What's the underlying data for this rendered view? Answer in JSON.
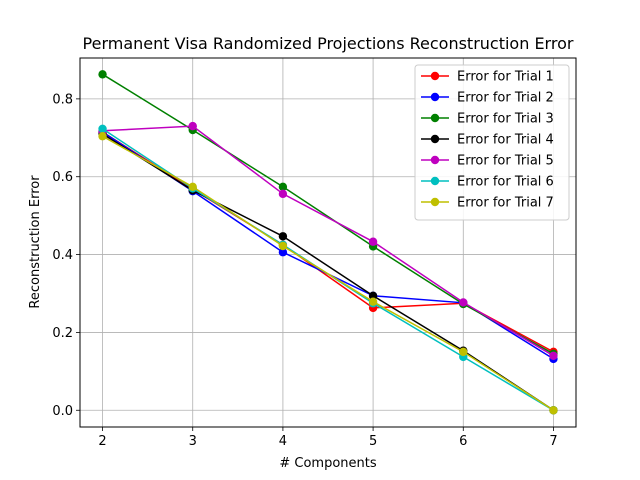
{
  "chart_data": {
    "type": "line",
    "title": "Permanent Visa Randomized Projections Reconstruction Error",
    "xlabel": "# Components",
    "ylabel": "Reconstruction Error",
    "x": [
      2,
      3,
      4,
      5,
      6,
      7
    ],
    "xlim": [
      1.75,
      7.25
    ],
    "ylim": [
      -0.043,
      0.905
    ],
    "xticks": [
      2,
      3,
      4,
      5,
      6,
      7
    ],
    "yticks": [
      0.0,
      0.2,
      0.4,
      0.6,
      0.8
    ],
    "ytick_labels": [
      "0.0",
      "0.2",
      "0.4",
      "0.6",
      "0.8"
    ],
    "grid": true,
    "legend_position": "top-right",
    "series": [
      {
        "name": "Error for Trial 1",
        "color": "#ff0000",
        "values": [
          0.715,
          0.568,
          0.425,
          0.263,
          0.275,
          0.15
        ]
      },
      {
        "name": "Error for Trial 2",
        "color": "#0000ff",
        "values": [
          0.715,
          0.563,
          0.406,
          0.294,
          0.276,
          0.132
        ]
      },
      {
        "name": "Error for Trial 3",
        "color": "#008000",
        "values": [
          0.863,
          0.72,
          0.574,
          0.421,
          0.273,
          0.145
        ]
      },
      {
        "name": "Error for Trial 4",
        "color": "#000000",
        "values": [
          0.71,
          0.565,
          0.447,
          0.294,
          0.153,
          0.0
        ]
      },
      {
        "name": "Error for Trial 5",
        "color": "#bf00bf",
        "values": [
          0.718,
          0.73,
          0.556,
          0.433,
          0.277,
          0.14
        ]
      },
      {
        "name": "Error for Trial 6",
        "color": "#00bfbf",
        "values": [
          0.723,
          0.57,
          0.425,
          0.275,
          0.137,
          0.0
        ]
      },
      {
        "name": "Error for Trial 7",
        "color": "#bfbf00",
        "values": [
          0.704,
          0.574,
          0.422,
          0.279,
          0.15,
          0.0
        ]
      }
    ]
  }
}
